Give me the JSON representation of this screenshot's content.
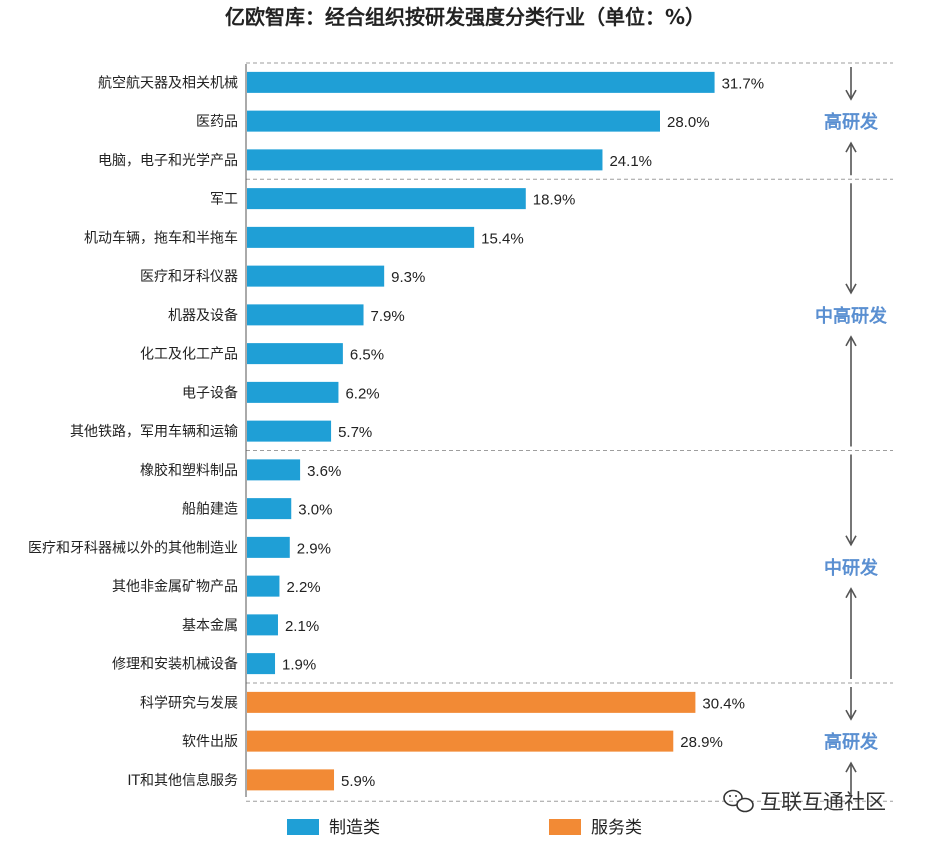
{
  "colors": {
    "manufacturing": "#1f9fd6",
    "services": "#f28a35",
    "group_label": "#5a8fd1",
    "axis": "#555555",
    "divider": "#9e9e9e",
    "arrow": "#555555",
    "text": "#222222"
  },
  "watermark": {
    "text": "互联互通社区",
    "icon": "wechat-icon"
  },
  "chart_data": {
    "type": "bar",
    "orientation": "horizontal",
    "title": "亿欧智库：经合组织按研发强度分类行业（单位：%）",
    "unit": "%",
    "xlim": [
      0,
      35
    ],
    "grid": false,
    "legend_position": "bottom",
    "legend": [
      {
        "name": "制造类",
        "color_key": "manufacturing"
      },
      {
        "name": "服务类",
        "color_key": "services"
      }
    ],
    "categories": [
      "航空航天器及相关机械",
      "医药品",
      "电脑，电子和光学产品",
      "军工",
      "机动车辆，拖车和半拖车",
      "医疗和牙科仪器",
      "机器及设备",
      "化工及化工产品",
      "电子设备",
      "其他铁路，军用车辆和运输",
      "橡胶和塑料制品",
      "船舶建造",
      "医疗和牙科器械以外的其他制造业",
      "其他非金属矿物产品",
      "基本金属",
      "修理和安装机械设备",
      "科学研究与发展",
      "软件出版",
      "IT和其他信息服务"
    ],
    "values": [
      31.7,
      28.0,
      24.1,
      18.9,
      15.4,
      9.3,
      7.9,
      6.5,
      6.2,
      5.7,
      3.6,
      3.0,
      2.9,
      2.2,
      2.1,
      1.9,
      30.4,
      28.9,
      5.9
    ],
    "value_labels": [
      "31.7%",
      "28.0%",
      "24.1%",
      "18.9%",
      "15.4%",
      "9.3%",
      "7.9%",
      "6.5%",
      "6.2%",
      "5.7%",
      "3.6%",
      "3.0%",
      "2.9%",
      "2.2%",
      "2.1%",
      "1.9%",
      "30.4%",
      "28.9%",
      "5.9%"
    ],
    "series_type": [
      "制造类",
      "制造类",
      "制造类",
      "制造类",
      "制造类",
      "制造类",
      "制造类",
      "制造类",
      "制造类",
      "制造类",
      "制造类",
      "制造类",
      "制造类",
      "制造类",
      "制造类",
      "制造类",
      "服务类",
      "服务类",
      "服务类"
    ],
    "groups": [
      {
        "label": "高研发",
        "first": 0,
        "last": 2
      },
      {
        "label": "中高研发",
        "first": 3,
        "last": 9
      },
      {
        "label": "中研发",
        "first": 10,
        "last": 15
      },
      {
        "label": "高研发",
        "first": 16,
        "last": 18
      }
    ]
  }
}
